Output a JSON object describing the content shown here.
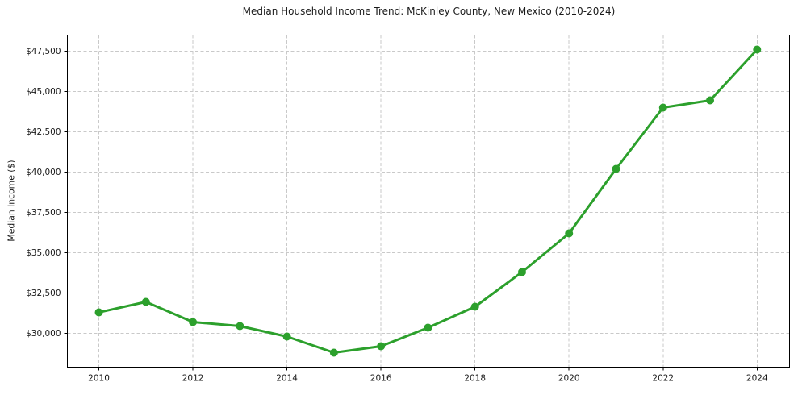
{
  "chart_data": {
    "type": "line",
    "title": "Median Household Income Trend: McKinley County, New Mexico (2010-2024)",
    "xlabel": "",
    "ylabel": "Median Income ($)",
    "series_name": "Median Household Income",
    "x": [
      2010,
      2011,
      2012,
      2013,
      2014,
      2015,
      2016,
      2017,
      2018,
      2019,
      2020,
      2021,
      2022,
      2023,
      2024
    ],
    "values": [
      31300,
      31950,
      30700,
      30450,
      29800,
      28800,
      29200,
      30350,
      31650,
      33800,
      36200,
      40200,
      44000,
      44450,
      47600
    ],
    "xticks": [
      2010,
      2012,
      2014,
      2016,
      2018,
      2020,
      2022,
      2024
    ],
    "yticks": [
      30000,
      32500,
      35000,
      37500,
      40000,
      42500,
      45000,
      47500
    ],
    "ytick_prefix": "$",
    "xlim": [
      2009.33,
      2024.69
    ],
    "ylim": [
      27900,
      48500
    ],
    "grid": true,
    "grid_style": "dashed",
    "legend": "none",
    "marker": "circle",
    "colors": {
      "line": "#2ca02c",
      "marker": "#2ca02c",
      "grid": "#c9c9c9",
      "spine": "#000000",
      "text": "#1a1a1a",
      "background": "#ffffff"
    }
  }
}
